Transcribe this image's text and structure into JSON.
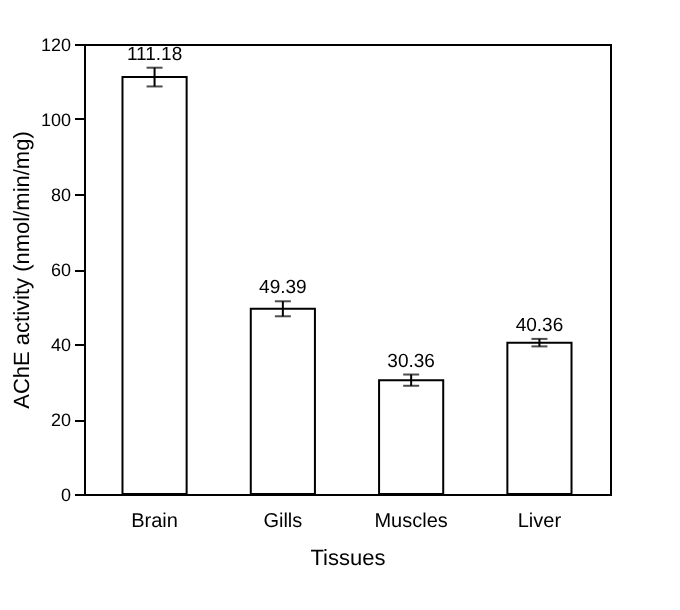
{
  "chart_data": {
    "type": "bar",
    "xlabel": "Tissues",
    "ylabel": "AChE activity (nmol/min/mg)",
    "categories": [
      "Brain",
      "Gills",
      "Muscles",
      "Liver"
    ],
    "values": [
      111.18,
      49.39,
      30.36,
      40.36
    ],
    "errors": [
      2.5,
      2,
      1.5,
      1
    ],
    "color": "#ffffff",
    "ylim": [
      0,
      120
    ],
    "yticks": [
      0,
      20,
      40,
      60,
      80,
      100,
      120
    ],
    "data_labels": true,
    "grid": false
  }
}
